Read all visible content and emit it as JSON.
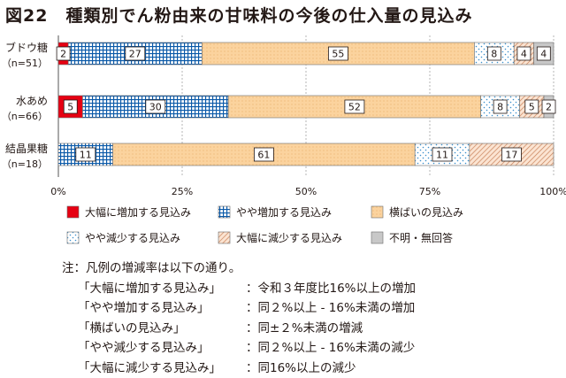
{
  "title": "図22　種類別でん粉由来の甘味料の今後の仕入量の見込み",
  "chart_data": {
    "type": "bar",
    "orientation": "horizontal",
    "stacked": true,
    "normalized": true,
    "xlim": [
      0,
      100
    ],
    "ticks": [
      "0%",
      "25%",
      "50%",
      "75%",
      "100%"
    ],
    "categories": [
      {
        "name": "ブドウ糖",
        "n": "（n=51）"
      },
      {
        "name": "水あめ",
        "n": "（n=66）"
      },
      {
        "name": "結晶果糖",
        "n": "（n=18）"
      }
    ],
    "series": [
      {
        "name": "大幅に増加する見込み",
        "values": [
          2,
          5,
          0
        ],
        "color": "#e60012",
        "pattern": "solid"
      },
      {
        "name": "やや増加する見込み",
        "values": [
          27,
          30,
          11
        ],
        "color": "#0a59a8",
        "pattern": "grid"
      },
      {
        "name": "横ばいの見込み",
        "values": [
          55,
          52,
          61
        ],
        "color": "#fbd39e",
        "pattern": "dots"
      },
      {
        "name": "やや減少する見込み",
        "values": [
          8,
          8,
          11
        ],
        "color": "#cfe3f3",
        "pattern": "sparse-dots"
      },
      {
        "name": "大幅に減少する見込み",
        "values": [
          4,
          5,
          17
        ],
        "color": "#f0c3a4",
        "pattern": "diagonal"
      },
      {
        "name": "不明・無回答",
        "values": [
          4,
          2,
          0
        ],
        "color": "#c8c8c8",
        "pattern": "solid"
      }
    ],
    "data_labels": [
      [
        "2",
        "27",
        "55",
        "8",
        "4",
        "4"
      ],
      [
        "5",
        "30",
        "52",
        "8",
        "5",
        "2"
      ],
      [
        "",
        "11",
        "61",
        "11",
        "17",
        ""
      ]
    ],
    "legend_position": "bottom"
  },
  "notes": {
    "header": "注：凡例の増減率は以下の通り。",
    "items": [
      {
        "term": "「大幅に増加する見込み」",
        "desc": "：令和３年度比16%以上の増加"
      },
      {
        "term": "「やや増加する見込み」",
        "desc": "：同２%以上 - 16%未満の増加"
      },
      {
        "term": "「横ばいの見込み」",
        "desc": "：同±２%未満の増減"
      },
      {
        "term": "「やや減少する見込み」",
        "desc": "：同２%以上 - 16%未満の減少"
      },
      {
        "term": "「大幅に減少する見込み」",
        "desc": "：同16%以上の減少"
      }
    ]
  }
}
